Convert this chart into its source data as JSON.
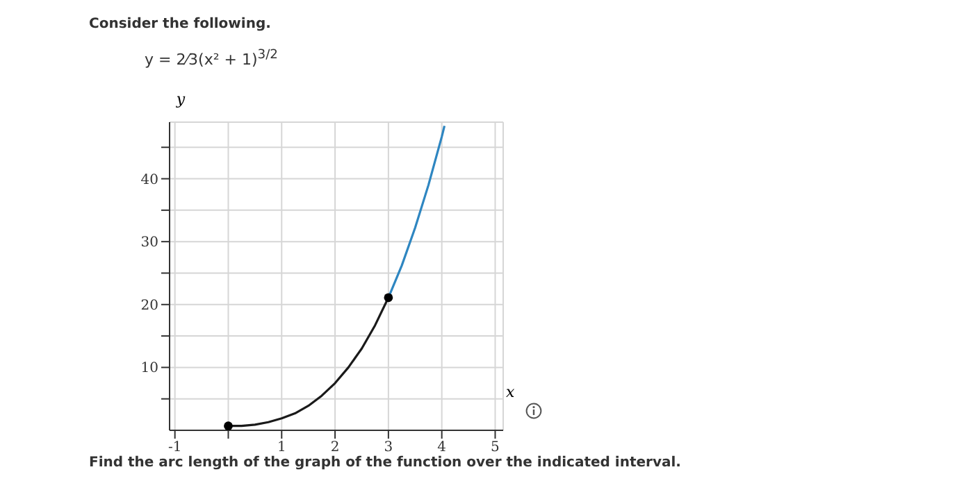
{
  "chart_data": {
    "type": "line",
    "title": "Consider the following.",
    "subtitle": "y = 2⁄3(x² + 1)$^{3/2}$",
    "xlabel": "x",
    "ylabel": "y",
    "annotations": [
      "Find the arc length of the graph of the function over the indicated interval."
    ],
    "series": [
      {
        "color": "#1a1a1a",
        "marker": "none",
        "x": [
          0,
          0.25,
          0.5,
          0.75,
          1,
          1.25,
          1.5,
          1.75,
          2,
          2.25,
          2.5,
          2.75,
          3
        ],
        "values": [
          0.7,
          0.7,
          0.9,
          1.3,
          1.9,
          2.7,
          3.9,
          5.5,
          7.5,
          10,
          13,
          16.7,
          21.1
        ]
      },
      {
        "color": "#2e86c1",
        "marker": "none",
        "x": [
          3,
          3.25,
          3.5,
          3.75,
          4,
          4.05
        ],
        "values": [
          21.1,
          26.2,
          32.2,
          39,
          46.7,
          48.4
        ]
      },
      {
        "type": "scatter",
        "color": "#000000",
        "marker": "circle",
        "x": [
          0,
          3
        ],
        "values": [
          0.7,
          21.1
        ]
      }
    ],
    "xlim": [
      -1.1,
      5.15
    ],
    "ylim": [
      0,
      49
    ],
    "xticks": [
      -1,
      {
        "value": 0,
        "label": null
      },
      1,
      2,
      3,
      4,
      5
    ],
    "yticks": [
      {
        "value": 5,
        "label": null
      },
      10,
      {
        "value": 15,
        "label": null
      },
      20,
      {
        "value": 25,
        "label": null
      },
      30,
      {
        "value": 35,
        "label": null
      },
      40,
      {
        "value": 45,
        "label": null
      }
    ],
    "grid": true
  }
}
